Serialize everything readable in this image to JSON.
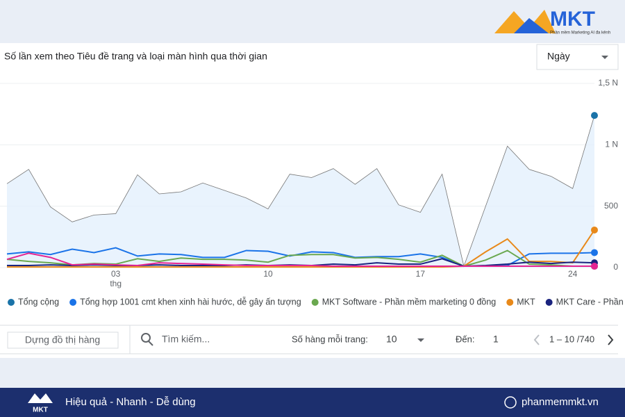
{
  "header": {
    "brand": "MKT",
    "tagline": "Phần mềm Marketing AI đa kênh"
  },
  "period_select": "Ngày",
  "chart_data": {
    "type": "line",
    "title": "Số lần xem theo Tiêu đề trang và loại màn hình qua thời gian",
    "categories": [
      null,
      null,
      null,
      null,
      null,
      "03",
      null,
      null,
      null,
      null,
      null,
      null,
      "10",
      null,
      null,
      null,
      null,
      null,
      null,
      "17",
      null,
      null,
      null,
      null,
      null,
      null,
      "24",
      null
    ],
    "x_sublabel": "thg",
    "ylim": [
      0,
      1500
    ],
    "yticks": [
      0,
      500,
      {
        "value": 1000,
        "label": "1 N"
      },
      {
        "value": 1500,
        "label": "1,5 N"
      }
    ],
    "grid": true,
    "series": [
      {
        "name": "Tổng cộng",
        "color": "#1a73a8",
        "values": [
          683,
          800,
          494,
          372,
          428,
          439,
          756,
          600,
          617,
          689,
          628,
          567,
          478,
          761,
          733,
          806,
          678,
          806,
          511,
          450,
          761,
          11,
          500,
          989,
          800,
          744,
          644,
          1239
        ]
      },
      {
        "name": "Tổng hợp 1001 cmt khen xinh hài hước, dễ gây ấn tượng",
        "color": "#1a73e8",
        "values": [
          111,
          128,
          106,
          150,
          122,
          161,
          94,
          111,
          106,
          83,
          83,
          139,
          133,
          94,
          128,
          122,
          83,
          89,
          89,
          111,
          83,
          11,
          11,
          17,
          111,
          117,
          117,
          122
        ]
      },
      {
        "name": "MKT Software - Phần mềm marketing 0 đồng",
        "color": "#6aa84f",
        "values": [
          67,
          50,
          39,
          22,
          33,
          28,
          72,
          50,
          78,
          67,
          67,
          61,
          44,
          100,
          106,
          106,
          78,
          83,
          67,
          44,
          100,
          11,
          61,
          139,
          28,
          22,
          11,
          11
        ]
      },
      {
        "name": "MKT",
        "color": "#e8891a",
        "values": [
          5,
          5,
          5,
          5,
          5,
          5,
          5,
          5,
          5,
          5,
          5,
          5,
          5,
          5,
          5,
          5,
          5,
          5,
          5,
          5,
          5,
          11,
          128,
          233,
          50,
          50,
          39,
          306
        ]
      },
      {
        "name": "MKT Care - Phần mềm quản",
        "color": "#1a237e",
        "values": [
          17,
          17,
          22,
          17,
          22,
          17,
          17,
          22,
          17,
          17,
          17,
          22,
          17,
          22,
          17,
          28,
          22,
          39,
          28,
          28,
          72,
          11,
          17,
          28,
          44,
          33,
          44,
          39
        ]
      },
      {
        "color": "#e52592",
        "values": [
          67,
          117,
          83,
          22,
          28,
          22,
          17,
          39,
          33,
          28,
          22,
          17,
          17,
          17,
          17,
          11,
          11,
          11,
          11,
          11,
          11,
          11,
          11,
          11,
          11,
          11,
          11,
          11
        ]
      }
    ]
  },
  "controls": {
    "build_rows": "Dựng đồ thị hàng",
    "search": "Tìm kiếm...",
    "rows_per_page_label": "Số hàng mỗi trang:",
    "rows_per_page": "10",
    "goto_label": "Đến:",
    "goto": "1",
    "range": "1 – 10 /740"
  },
  "footer": {
    "brand": "MKT",
    "slogan": "Hiệu quả - Nhanh - Dễ dùng",
    "website": "phanmemmkt.vn"
  }
}
